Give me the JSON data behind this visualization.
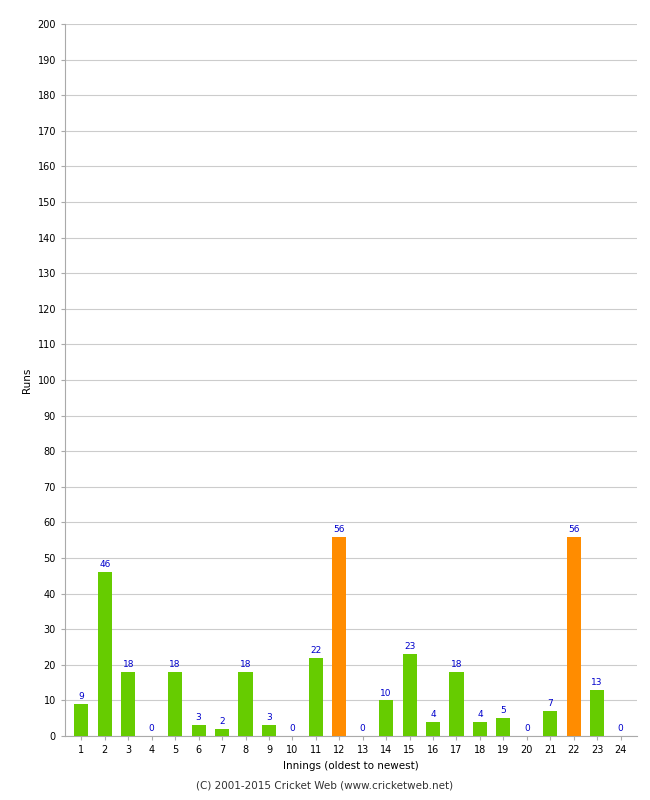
{
  "xlabel": "Innings (oldest to newest)",
  "ylabel": "Runs",
  "innings": [
    1,
    2,
    3,
    4,
    5,
    6,
    7,
    8,
    9,
    10,
    11,
    12,
    13,
    14,
    15,
    16,
    17,
    18,
    19,
    20,
    21,
    22,
    23,
    24
  ],
  "values": [
    9,
    46,
    18,
    0,
    18,
    3,
    2,
    18,
    3,
    0,
    22,
    56,
    0,
    10,
    23,
    4,
    18,
    4,
    5,
    0,
    7,
    56,
    13,
    0
  ],
  "bar_colors": [
    "#66cc00",
    "#66cc00",
    "#66cc00",
    "#66cc00",
    "#66cc00",
    "#66cc00",
    "#66cc00",
    "#66cc00",
    "#66cc00",
    "#66cc00",
    "#66cc00",
    "#ff8c00",
    "#66cc00",
    "#66cc00",
    "#66cc00",
    "#66cc00",
    "#66cc00",
    "#66cc00",
    "#66cc00",
    "#66cc00",
    "#66cc00",
    "#ff8c00",
    "#66cc00",
    "#66cc00"
  ],
  "ylim": [
    0,
    200
  ],
  "ytick_step": 10,
  "label_color": "#0000cc",
  "label_fontsize": 6.5,
  "axis_label_fontsize": 7.5,
  "tick_fontsize": 7,
  "background_color": "#ffffff",
  "grid_color": "#cccccc",
  "spine_color": "#aaaaaa",
  "footer_text": "(C) 2001-2015 Cricket Web (www.cricketweb.net)",
  "footer_fontsize": 7.5,
  "bar_width": 0.6
}
